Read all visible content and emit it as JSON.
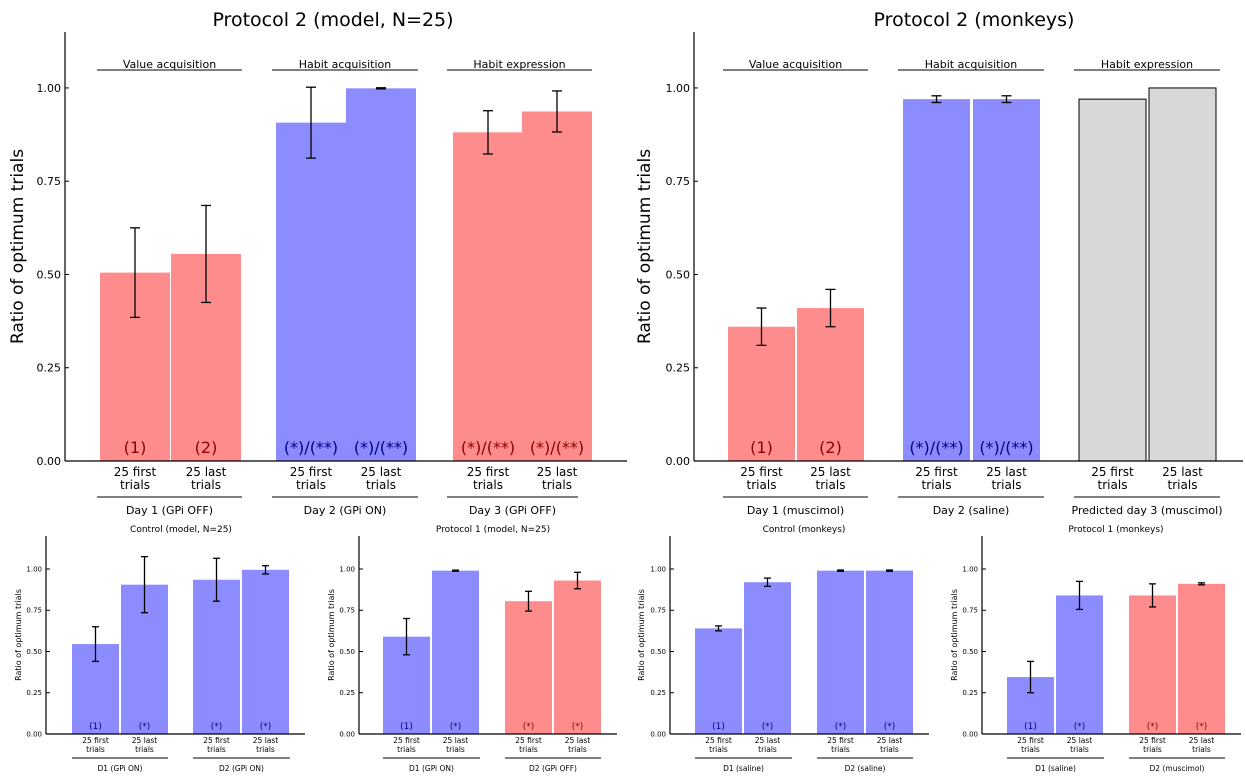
{
  "colors": {
    "red": "#ff8c8c",
    "blue": "#8c8cff",
    "gray": "#d8d8d8",
    "label_red": "#8b0000",
    "label_blue": "#00008b",
    "axis": "#000000"
  },
  "chart_data": [
    {
      "type": "bar",
      "title": "Protocol 2 (model, N=25)",
      "ylabel": "Ratio of optimum trials",
      "ylim": [
        0,
        1.15
      ],
      "yticks": [
        "0.00",
        "0.25",
        "0.50",
        "0.75",
        "1.00"
      ],
      "bars": [
        {
          "label": "25 first\ntrials",
          "value": 0.505,
          "err": 0.12,
          "color": "red",
          "annot": "(1)"
        },
        {
          "label": "25 last\ntrials",
          "value": 0.555,
          "err": 0.13,
          "color": "red",
          "annot": "(2)"
        },
        {
          "label": "25 first\ntrials",
          "value": 0.907,
          "err": 0.095,
          "color": "blue",
          "annot": "(*)/(**)"
        },
        {
          "label": "25 last\ntrials",
          "value": 0.999,
          "err": 0.0015,
          "color": "blue",
          "annot": "(*)/(**)"
        },
        {
          "label": "25 first\ntrials",
          "value": 0.881,
          "err": 0.058,
          "color": "red",
          "annot": "(*)/(**)"
        },
        {
          "label": "25 last\ntrials",
          "value": 0.937,
          "err": 0.055,
          "color": "red",
          "annot": "(*)/(**)"
        }
      ],
      "groups_top": [
        "Value acquisition",
        "Habit acquisition",
        "Habit expression"
      ],
      "groups_bottom": [
        "Day 1 (GPi OFF)",
        "Day 2 (GPi ON)",
        "Day 3 (GPi OFF)"
      ]
    },
    {
      "type": "bar",
      "title": "Protocol 2 (monkeys)",
      "ylabel": "Ratio of optimum trials",
      "ylim": [
        0,
        1.15
      ],
      "yticks": [
        "0.00",
        "0.25",
        "0.50",
        "0.75",
        "1.00"
      ],
      "bars": [
        {
          "label": "25 first\ntrials",
          "value": 0.36,
          "err": 0.05,
          "color": "red",
          "annot": "(1)"
        },
        {
          "label": "25 last\ntrials",
          "value": 0.41,
          "err": 0.05,
          "color": "red",
          "annot": "(2)"
        },
        {
          "label": "25 first\ntrials",
          "value": 0.97,
          "err": 0.009,
          "color": "blue",
          "annot": "(*)/(**)"
        },
        {
          "label": "25 last\ntrials",
          "value": 0.97,
          "err": 0.009,
          "color": "blue",
          "annot": "(*)/(**)"
        },
        {
          "label": "25 first\ntrials",
          "value": 0.97,
          "err": null,
          "color": "gray",
          "annot": ""
        },
        {
          "label": "25 last\ntrials",
          "value": 1.0,
          "err": null,
          "color": "gray",
          "annot": ""
        }
      ],
      "groups_top": [
        "Value acquisition",
        "Habit acquisition",
        "Habit expression"
      ],
      "groups_bottom": [
        "Day 1 (muscimol)",
        "Day 2 (saline)",
        "Predicted day 3 (muscimol)"
      ]
    },
    {
      "type": "bar",
      "title": "Control (model, N=25)",
      "ylabel": "Ratio of optimum trials",
      "ylim": [
        0,
        1.2
      ],
      "yticks": [
        "0.00",
        "0.25",
        "0.50",
        "0.75",
        "1.00"
      ],
      "bars": [
        {
          "label": "25 first\ntrials",
          "value": 0.545,
          "err": 0.105,
          "color": "blue",
          "annot": "(1)"
        },
        {
          "label": "25 last\ntrials",
          "value": 0.905,
          "err": 0.17,
          "color": "blue",
          "annot": "(*)"
        },
        {
          "label": "25 first\ntrials",
          "value": 0.935,
          "err": 0.13,
          "color": "blue",
          "annot": "(*)"
        },
        {
          "label": "25 last\ntrials",
          "value": 0.995,
          "err": 0.025,
          "color": "blue",
          "annot": "(*)"
        }
      ],
      "groups_bottom": [
        "D1 (GPi ON)",
        "D2 (GPi ON)"
      ]
    },
    {
      "type": "bar",
      "title": "Protocol 1 (model, N=25)",
      "ylabel": "Ratio of optimum trials",
      "ylim": [
        0,
        1.2
      ],
      "yticks": [
        "0.00",
        "0.25",
        "0.50",
        "0.75",
        "1.00"
      ],
      "bars": [
        {
          "label": "25 first\ntrials",
          "value": 0.59,
          "err": 0.11,
          "color": "blue",
          "annot": "(1)"
        },
        {
          "label": "25 last\ntrials",
          "value": 0.99,
          "err": 0.003,
          "color": "blue",
          "annot": "(*)"
        },
        {
          "label": "25 first\ntrials",
          "value": 0.805,
          "err": 0.06,
          "color": "red",
          "annot": "(*)"
        },
        {
          "label": "25 last\ntrials",
          "value": 0.93,
          "err": 0.05,
          "color": "red",
          "annot": "(*)"
        }
      ],
      "groups_bottom": [
        "D1 (GPi ON)",
        "D2 (GPi OFF)"
      ]
    },
    {
      "type": "bar",
      "title": "Control (monkeys)",
      "ylabel": "Ratio of optimum trials",
      "ylim": [
        0,
        1.2
      ],
      "yticks": [
        "0.00",
        "0.25",
        "0.50",
        "0.75",
        "1.00"
      ],
      "bars": [
        {
          "label": "25 first\ntrials",
          "value": 0.64,
          "err": 0.015,
          "color": "blue",
          "annot": "(1)"
        },
        {
          "label": "25 last\ntrials",
          "value": 0.92,
          "err": 0.025,
          "color": "blue",
          "annot": "(*)"
        },
        {
          "label": "25 first\ntrials",
          "value": 0.99,
          "err": 0.004,
          "color": "blue",
          "annot": "(*)"
        },
        {
          "label": "25 last\ntrials",
          "value": 0.99,
          "err": 0.004,
          "color": "blue",
          "annot": "(*)"
        }
      ],
      "groups_bottom": [
        "D1 (saline)",
        "D2 (saline)"
      ]
    },
    {
      "type": "bar",
      "title": "Protocol 1 (monkeys)",
      "ylabel": "Ratio of optimum trials",
      "ylim": [
        0,
        1.2
      ],
      "yticks": [
        "0.00",
        "0.25",
        "0.50",
        "0.75",
        "1.00"
      ],
      "bars": [
        {
          "label": "25 first\ntrials",
          "value": 0.345,
          "err": 0.095,
          "color": "blue",
          "annot": "(1)"
        },
        {
          "label": "25 last\ntrials",
          "value": 0.84,
          "err": 0.085,
          "color": "blue",
          "annot": "(*)"
        },
        {
          "label": "25 first\ntrials",
          "value": 0.84,
          "err": 0.07,
          "color": "red",
          "annot": "(*)"
        },
        {
          "label": "25 last\ntrials",
          "value": 0.91,
          "err": 0.006,
          "color": "red",
          "annot": "(*)"
        }
      ],
      "groups_bottom": [
        "D1 (saline)",
        "D2 (muscimol)"
      ]
    }
  ]
}
